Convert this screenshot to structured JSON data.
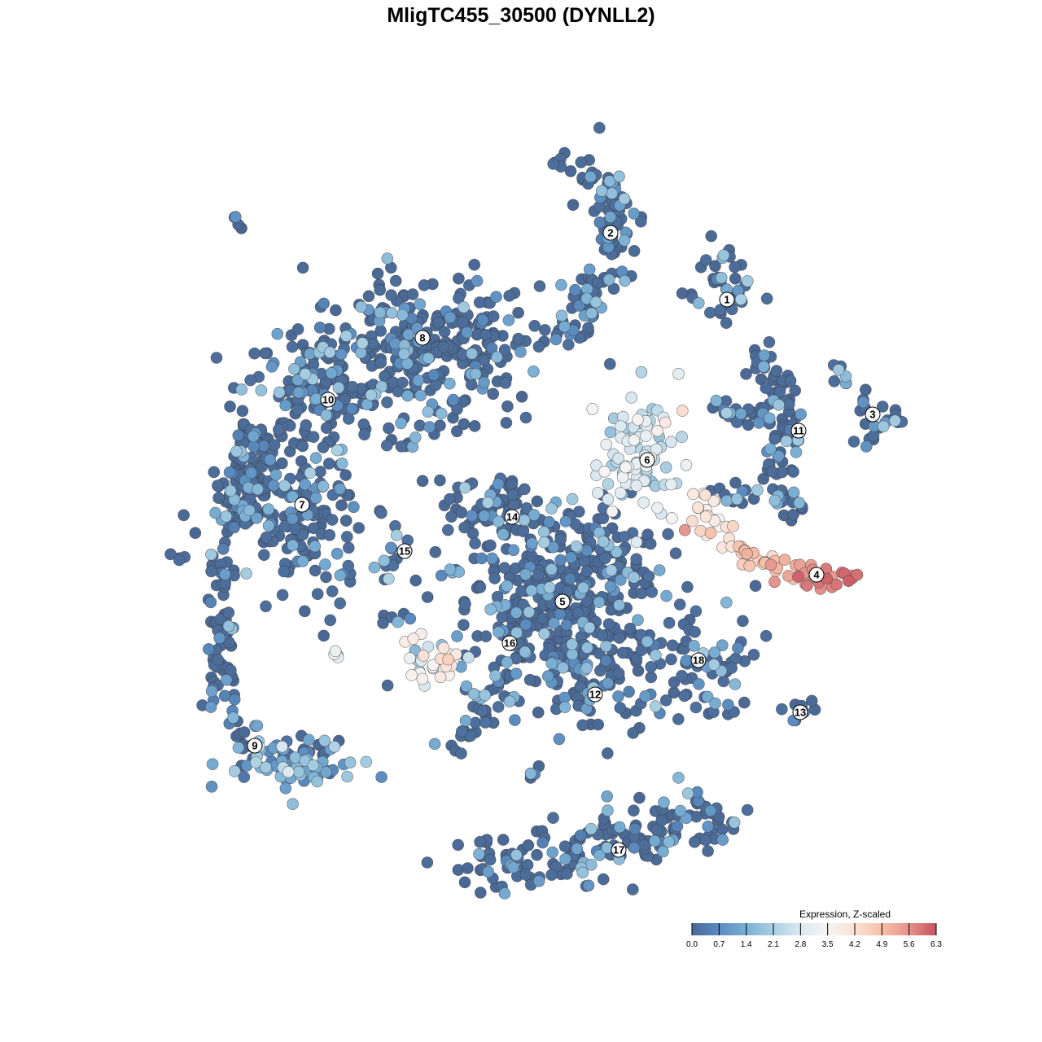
{
  "chart_data": {
    "type": "scatter",
    "title": "MligTC455_30500 (DYNLL2)",
    "xlim": [
      -64,
      64
    ],
    "ylim": [
      -64,
      64
    ],
    "grid": false,
    "axes_visible": false,
    "legend": {
      "title": "Expression, Z-scaled",
      "placement": "bottom-right",
      "ticks": [
        "0.0",
        "0.7",
        "1.4",
        "2.1",
        "2.8",
        "3.5",
        "4.2",
        "4.9",
        "5.6",
        "6.3"
      ],
      "range": [
        0,
        6.3
      ],
      "colors": [
        {
          "v": 0.0,
          "c": "#4a6894"
        },
        {
          "v": 0.7,
          "c": "#5a8cc0"
        },
        {
          "v": 1.4,
          "c": "#7aafd4"
        },
        {
          "v": 2.1,
          "c": "#a9cfe2"
        },
        {
          "v": 2.8,
          "c": "#dce9f1"
        },
        {
          "v": 3.5,
          "c": "#f5f4f3"
        },
        {
          "v": 4.2,
          "c": "#fbe1d5"
        },
        {
          "v": 4.9,
          "c": "#f6c0a8"
        },
        {
          "v": 5.6,
          "c": "#e5928a"
        },
        {
          "v": 6.3,
          "c": "#c7535f"
        }
      ]
    },
    "cluster_labels": [
      {
        "label": "1",
        "x": 25.3,
        "y": 27.2
      },
      {
        "label": "2",
        "x": 11.0,
        "y": 35.4
      },
      {
        "label": "3",
        "x": 43.2,
        "y": 13.1
      },
      {
        "label": "4",
        "x": 36.3,
        "y": -6.6
      },
      {
        "label": "5",
        "x": 5.1,
        "y": -9.9
      },
      {
        "label": "6",
        "x": 15.5,
        "y": 7.5
      },
      {
        "label": "7",
        "x": -26.9,
        "y": 2.0
      },
      {
        "label": "8",
        "x": -12.1,
        "y": 22.5
      },
      {
        "label": "9",
        "x": -32.7,
        "y": -27.6
      },
      {
        "label": "10",
        "x": -23.7,
        "y": 14.9
      },
      {
        "label": "11",
        "x": 34.1,
        "y": 11.1
      },
      {
        "label": "12",
        "x": 9.1,
        "y": -21.3
      },
      {
        "label": "13",
        "x": 34.3,
        "y": -23.5
      },
      {
        "label": "14",
        "x": -1.1,
        "y": 0.5
      },
      {
        "label": "15",
        "x": -14.3,
        "y": -3.7
      },
      {
        "label": "16",
        "x": -1.4,
        "y": -15.0
      },
      {
        "label": "17",
        "x": 12.0,
        "y": -40.4
      },
      {
        "label": "18",
        "x": 21.8,
        "y": -17.1
      }
    ],
    "point_groups": [
      {
        "cluster": "8",
        "shape": "blob",
        "center": [
          -12,
          21
        ],
        "spread": [
          7,
          4.5
        ],
        "n": 300,
        "expr": 0.4
      },
      {
        "cluster": "10",
        "shape": "blob",
        "center": [
          -26,
          16
        ],
        "spread": [
          4,
          4
        ],
        "n": 120,
        "expr": 0.5
      },
      {
        "cluster": "10",
        "shape": "path",
        "path": [
          [
            -33,
            12
          ],
          [
            -34,
            4
          ],
          [
            -36,
            0
          ]
        ],
        "spread": 1.5,
        "n": 80,
        "expr": 0.4
      },
      {
        "cluster": "7",
        "shape": "blob",
        "center": [
          -26,
          -1
        ],
        "spread": [
          3.5,
          5
        ],
        "n": 120,
        "expr": 0.5
      },
      {
        "cluster": "7",
        "shape": "blob",
        "center": [
          -32,
          3
        ],
        "spread": [
          3,
          3
        ],
        "n": 40,
        "expr": 0.4
      },
      {
        "cluster": "9",
        "shape": "path",
        "path": [
          [
            -36.5,
            -3
          ],
          [
            -37,
            -12
          ],
          [
            -37,
            -21
          ],
          [
            -35,
            -26
          ],
          [
            -30,
            -29
          ],
          [
            -22,
            -29
          ]
        ],
        "spread": 1,
        "n": 100,
        "expr": 0.4
      },
      {
        "cluster": "9",
        "shape": "blob",
        "center": [
          -28,
          -30
        ],
        "spread": [
          4,
          2
        ],
        "n": 60,
        "expr": 1.2
      },
      {
        "cluster": "2",
        "shape": "path",
        "path": [
          [
            5,
            44.5
          ],
          [
            10,
            42
          ],
          [
            12.5,
            36
          ],
          [
            11,
            31
          ],
          [
            8,
            27
          ],
          [
            5,
            23.5
          ]
        ],
        "spread": 1.5,
        "n": 110,
        "expr": 0.4
      },
      {
        "cluster": "2",
        "shape": "path",
        "path": [
          [
            2.5,
            22.5
          ],
          [
            8,
            23
          ]
        ],
        "spread": 0.5,
        "n": 10,
        "expr": 0.6
      },
      {
        "cluster": "1",
        "shape": "blob",
        "center": [
          24.5,
          28
        ],
        "spread": [
          2,
          2.5
        ],
        "n": 40,
        "expr": 0.5
      },
      {
        "cluster": "3",
        "shape": "path",
        "path": [
          [
            38.5,
            19.2
          ],
          [
            42,
            15
          ],
          [
            46.5,
            12.2
          ],
          [
            41,
            10.5
          ]
        ],
        "spread": 0.8,
        "n": 30,
        "expr": 0.6
      },
      {
        "cluster": "11",
        "shape": "path",
        "path": [
          [
            29,
            21
          ],
          [
            31.5,
            16
          ],
          [
            33,
            10
          ],
          [
            31,
            4
          ],
          [
            35,
            1
          ]
        ],
        "spread": 1.2,
        "n": 90,
        "expr": 0.4
      },
      {
        "cluster": "11",
        "shape": "path",
        "path": [
          [
            24,
            14
          ],
          [
            30,
            13
          ]
        ],
        "spread": 0.8,
        "n": 25,
        "expr": 0.5
      },
      {
        "cluster": "11",
        "shape": "blob",
        "center": [
          27,
          3
        ],
        "spread": [
          2,
          1
        ],
        "n": 15,
        "expr": 0.4
      },
      {
        "cluster": "6",
        "shape": "blob",
        "center": [
          14.5,
          8
        ],
        "spread": [
          3.5,
          4
        ],
        "n": 90,
        "expr": 2.8
      },
      {
        "cluster": "4",
        "shape": "path",
        "path": [
          [
            22,
            3.5
          ],
          [
            24,
            -1
          ],
          [
            29,
            -5
          ],
          [
            36,
            -7.5
          ],
          [
            41.5,
            -7
          ]
        ],
        "spread": 0.8,
        "n": 70,
        "expr": [
          3.6,
          6.2
        ]
      },
      {
        "cluster": "5",
        "shape": "blob",
        "center": [
          4,
          -10
        ],
        "spread": [
          6,
          6
        ],
        "n": 350,
        "expr": 0.4
      },
      {
        "cluster": "5",
        "shape": "blob",
        "center": [
          11,
          -4
        ],
        "spread": [
          3,
          3
        ],
        "n": 40,
        "expr": 0.6
      },
      {
        "cluster": "14",
        "shape": "blob",
        "center": [
          -3,
          2
        ],
        "spread": [
          4,
          2
        ],
        "n": 60,
        "expr": 0.5
      },
      {
        "cluster": "12",
        "shape": "blob",
        "center": [
          9,
          -19
        ],
        "spread": [
          3,
          4
        ],
        "n": 80,
        "expr": 0.3
      },
      {
        "cluster": "18",
        "shape": "blob",
        "center": [
          22,
          -17
        ],
        "spread": [
          3.5,
          4.5
        ],
        "n": 80,
        "expr": 0.6
      },
      {
        "cluster": "16",
        "shape": "blob",
        "center": [
          -10,
          -17
        ],
        "spread": [
          2,
          1.5
        ],
        "n": 30,
        "expr": 3.2
      },
      {
        "cluster": "16",
        "shape": "path",
        "path": [
          [
            -1,
            -16
          ],
          [
            -4,
            -22
          ],
          [
            -8,
            -27.5
          ]
        ],
        "spread": 1,
        "n": 40,
        "expr": 0.6
      },
      {
        "cluster": "13",
        "shape": "blob",
        "center": [
          35,
          -23
        ],
        "spread": [
          1.5,
          0.8
        ],
        "n": 10,
        "expr": 0.2
      },
      {
        "cluster": "15",
        "shape": "path",
        "path": [
          [
            -18,
            1.5
          ],
          [
            -15,
            -1
          ],
          [
            -16,
            -6.5
          ]
        ],
        "spread": 0.6,
        "n": 15,
        "expr": 0.6
      },
      {
        "cluster": "17",
        "shape": "path",
        "path": [
          [
            -6.5,
            -42.5
          ],
          [
            4,
            -42
          ],
          [
            12,
            -40
          ],
          [
            19,
            -36.5
          ],
          [
            25.5,
            -37.5
          ]
        ],
        "spread": 2,
        "n": 180,
        "expr": 0.4
      },
      {
        "cluster": "",
        "shape": "blob",
        "center": [
          -35,
          36.5
        ],
        "spread": [
          0.5,
          0.5
        ],
        "n": 4,
        "expr": 0
      },
      {
        "cluster": "",
        "shape": "blob",
        "center": [
          -42,
          -5
        ],
        "spread": [
          0.5,
          0.4
        ],
        "n": 4,
        "expr": 0.4
      },
      {
        "cluster": "",
        "shape": "blob",
        "center": [
          -23,
          -16.5
        ],
        "spread": [
          0.5,
          0.3
        ],
        "n": 4,
        "expr": 2.5
      },
      {
        "cluster": "",
        "shape": "blob",
        "center": [
          1,
          -31
        ],
        "spread": [
          0.4,
          0.4
        ],
        "n": 4,
        "expr": 0
      },
      {
        "cluster": "",
        "shape": "blob",
        "center": [
          20,
          -1.3
        ],
        "spread": [
          0.1,
          0.1
        ],
        "n": 1,
        "expr": 6.3
      },
      {
        "cluster": "",
        "shape": "blob",
        "center": [
          -14.5,
          9.5
        ],
        "spread": [
          1,
          0.4
        ],
        "n": 4,
        "expr": 0
      },
      {
        "cluster": "",
        "shape": "blob",
        "center": [
          -9,
          -6.5
        ],
        "spread": [
          0.5,
          0.3
        ],
        "n": 3,
        "expr": 0.3
      },
      {
        "cluster": "",
        "shape": "blob",
        "center": [
          -15,
          -12
        ],
        "spread": [
          1,
          0.3
        ],
        "n": 6,
        "expr": 0.2
      }
    ]
  }
}
